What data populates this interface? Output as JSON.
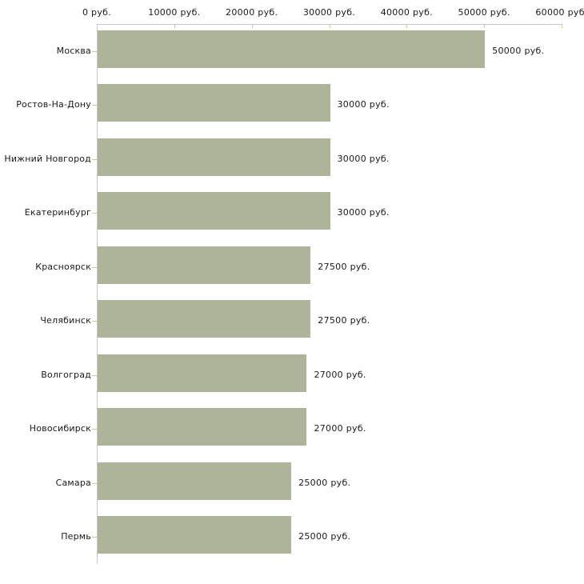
{
  "page": {
    "background": "#ffffff"
  },
  "chart_data": {
    "type": "bar",
    "orientation": "horizontal",
    "unit": "руб.",
    "categories": [
      "Москва",
      "Ростов-На-Дону",
      "Нижний Новгород",
      "Екатеринбург",
      "Красноярск",
      "Челябинск",
      "Волгоград",
      "Новосибирск",
      "Самара",
      "Пермь"
    ],
    "values": [
      50000,
      30000,
      30000,
      30000,
      27500,
      27500,
      27000,
      27000,
      25000,
      25000
    ],
    "value_labels": [
      "50000 руб.",
      "30000 руб.",
      "30000 руб.",
      "30000 руб.",
      "27500 руб.",
      "27500 руб.",
      "27000 руб.",
      "27000 руб.",
      "25000 руб.",
      "25000 руб."
    ],
    "x_axis": {
      "position": "top",
      "range": [
        0,
        60000
      ],
      "ticks": [
        0,
        10000,
        20000,
        30000,
        40000,
        50000,
        60000
      ],
      "tick_labels": [
        "0 руб.",
        "10000 руб.",
        "20000 руб.",
        "30000 руб.",
        "40000 руб.",
        "50000 руб.",
        "60000 руб."
      ]
    },
    "grid": false,
    "legend": false,
    "colors": {
      "bar": "#aeb49a",
      "tick": "#c9c9a6",
      "axis_line": "#c6c6c6",
      "text": "#1a1a1a"
    }
  }
}
